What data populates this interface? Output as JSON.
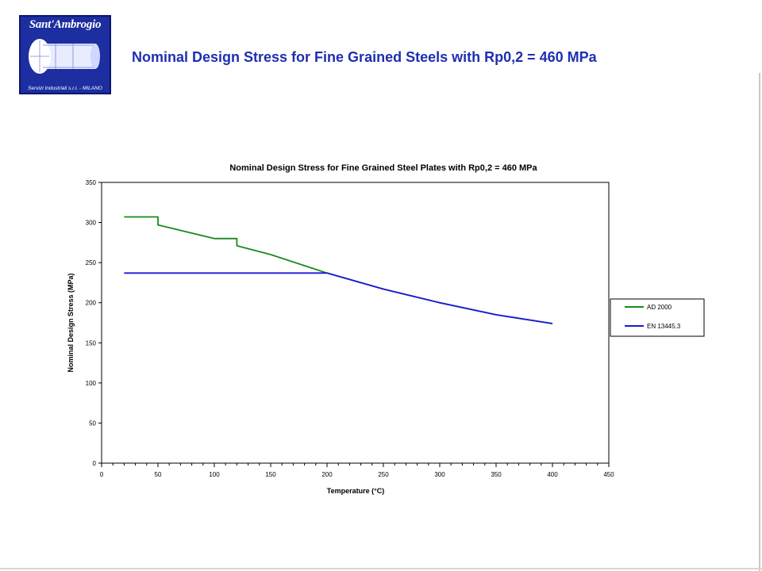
{
  "header": {
    "logo_name": "Sant'Ambrogio",
    "logo_sub": "Servizi Industriali s.r.l. - MILANO",
    "title": "Nominal Design Stress for Fine Grained Steels with Rp0,2 = 460 MPa"
  },
  "colors": {
    "title": "#1f2fb0",
    "logo_bg": "#1c2ea0",
    "ad2000": "#1a8a1a",
    "en13445": "#1a1ad8"
  },
  "chart_data": {
    "type": "line",
    "title": "Nominal Design Stress for Fine Grained Steel Plates with Rp0,2 = 460 MPa",
    "xlabel": "Temperature (°C)",
    "ylabel": "Nominal Design Stress (MPa)",
    "xlim": [
      0,
      450
    ],
    "ylim": [
      0,
      350
    ],
    "xticks": [
      0,
      50,
      100,
      150,
      200,
      250,
      300,
      350,
      400,
      450
    ],
    "yticks": [
      0,
      50,
      100,
      150,
      200,
      250,
      300,
      350
    ],
    "grid": false,
    "legend_position": "right",
    "series": [
      {
        "name": "AD 2000",
        "color": "#1a8a1a",
        "points": [
          [
            20,
            307
          ],
          [
            50,
            307
          ],
          [
            50,
            297
          ],
          [
            100,
            280
          ],
          [
            120,
            280
          ],
          [
            120,
            271
          ],
          [
            150,
            260
          ],
          [
            200,
            237
          ],
          [
            250,
            217
          ],
          [
            300,
            200
          ],
          [
            350,
            185
          ],
          [
            400,
            174
          ]
        ]
      },
      {
        "name": "EN 13445.3",
        "color": "#1a1ad8",
        "points": [
          [
            20,
            237
          ],
          [
            200,
            237
          ],
          [
            250,
            217
          ],
          [
            300,
            200
          ],
          [
            350,
            185
          ],
          [
            400,
            174
          ]
        ]
      }
    ]
  }
}
